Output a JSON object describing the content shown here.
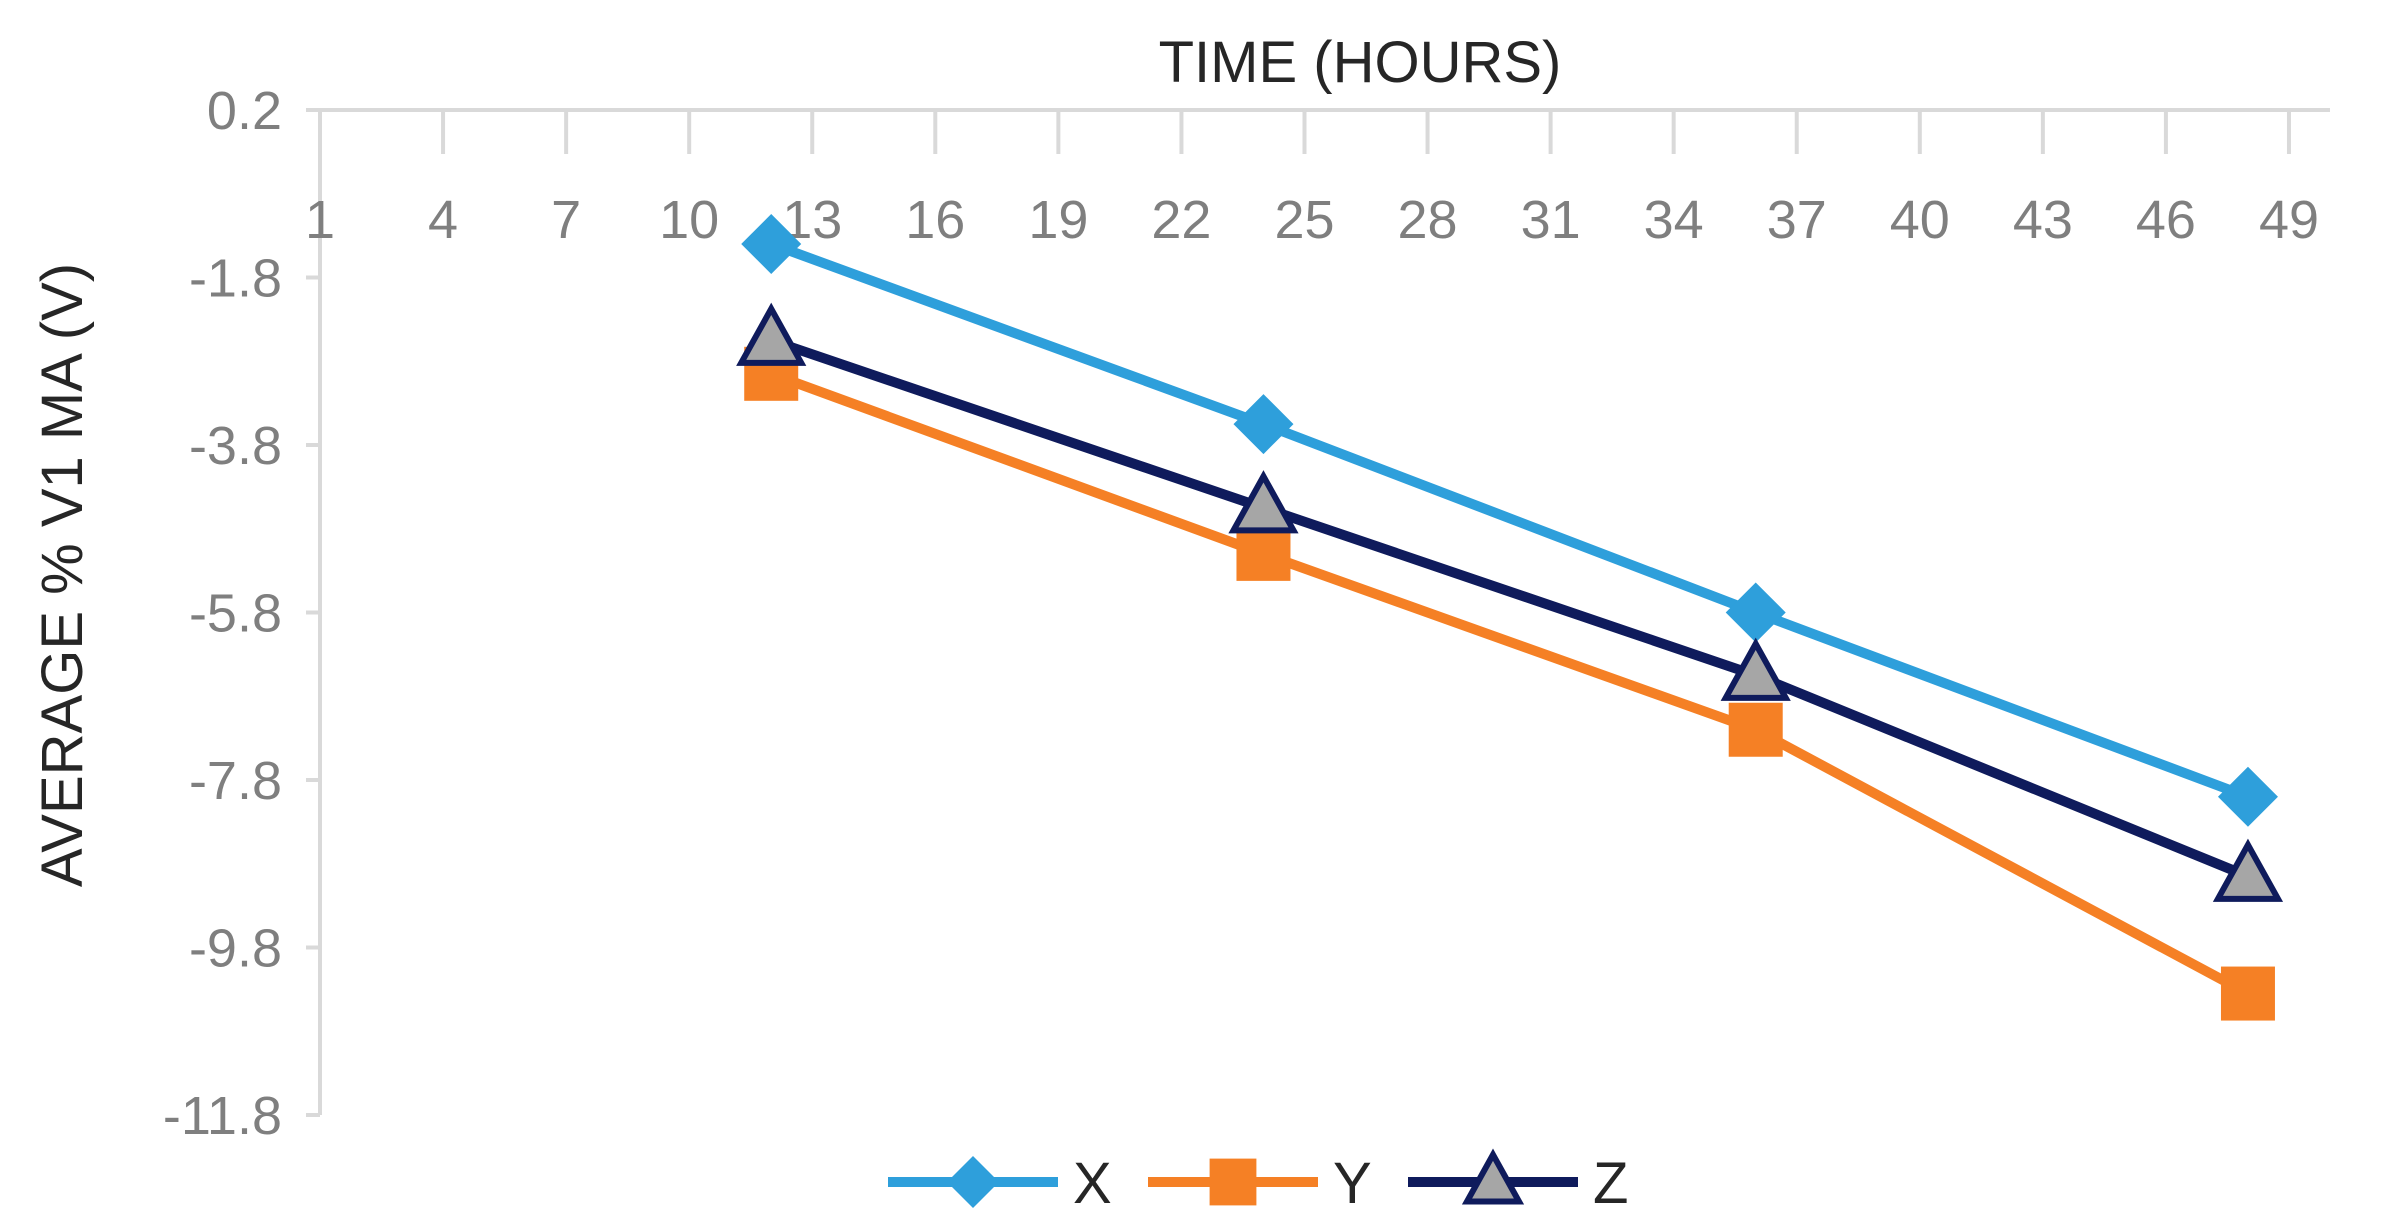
{
  "chart_data": {
    "type": "line",
    "title": "",
    "xlabel": "TIME (HOURS)",
    "ylabel": "AVERAGE % V1 MA (V)",
    "x_axis_position": "top",
    "xlim": [
      1,
      50
    ],
    "xticks": [
      1,
      4,
      7,
      10,
      13,
      16,
      19,
      22,
      25,
      28,
      31,
      34,
      37,
      40,
      43,
      46,
      49
    ],
    "ylim": [
      -11.8,
      0.2
    ],
    "yticks": [
      0.2,
      -1.8,
      -3.8,
      -5.8,
      -7.8,
      -9.8,
      -11.8
    ],
    "ytick_labels": [
      "0.2",
      "-1.8",
      "-3.8",
      "-5.8",
      "-7.8",
      "-9.8",
      "-11.8"
    ],
    "grid": false,
    "legend_position": "bottom",
    "x": [
      12,
      24,
      36,
      48
    ],
    "series": [
      {
        "name": "X",
        "marker": "diamond",
        "color": "#2E9FDB",
        "values": [
          -1.4,
          -3.55,
          -5.8,
          -8.0
        ]
      },
      {
        "name": "Y",
        "marker": "square",
        "color": "#F58025",
        "values": [
          -2.95,
          -5.1,
          -7.2,
          -10.35
        ]
      },
      {
        "name": "Z",
        "marker": "triangle",
        "color": "#0F1B5C",
        "values": [
          -2.55,
          -4.55,
          -6.55,
          -8.95
        ]
      }
    ]
  }
}
